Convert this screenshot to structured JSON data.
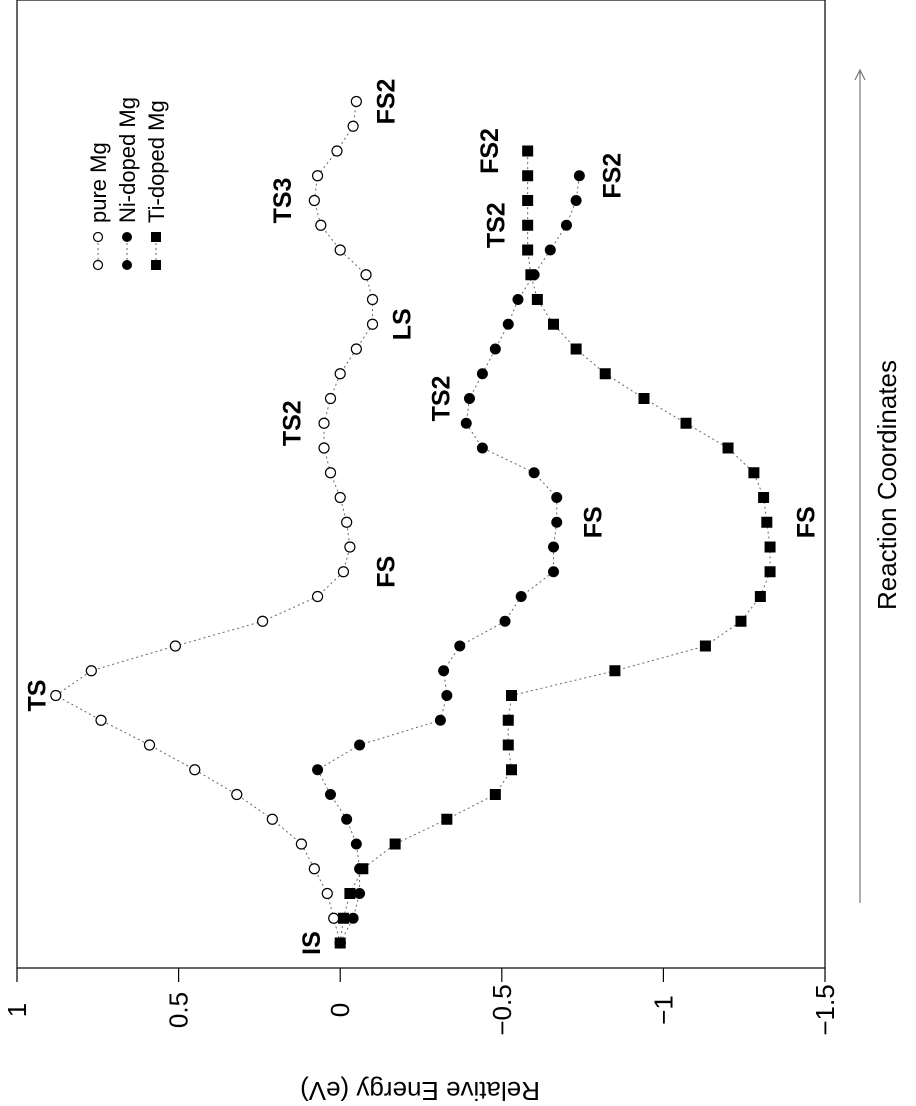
{
  "chart_data": {
    "type": "line",
    "orientation": "rotated-90",
    "xlabel": "Reaction Coordinates",
    "ylabel": "Relative Energy (eV)",
    "ylim": [
      -1.5,
      1.0
    ],
    "yticks": [
      1,
      0.5,
      0,
      -0.5,
      -1,
      -1.5
    ],
    "ytick_labels": [
      "1",
      "0.5",
      "0",
      "−0.5",
      "−1",
      "−1.5"
    ],
    "x_arrow": true,
    "series": [
      {
        "name": "pure Mg",
        "marker": "open-circle",
        "points": [
          [
            0,
            0.0
          ],
          [
            1,
            0.02
          ],
          [
            2,
            0.04
          ],
          [
            3,
            0.08
          ],
          [
            4,
            0.12
          ],
          [
            5,
            0.21
          ],
          [
            6,
            0.32
          ],
          [
            7,
            0.45
          ],
          [
            8,
            0.59
          ],
          [
            9,
            0.74
          ],
          [
            10,
            0.88
          ],
          [
            11,
            0.77
          ],
          [
            12,
            0.51
          ],
          [
            13,
            0.24
          ],
          [
            14,
            0.07
          ],
          [
            15,
            -0.01
          ],
          [
            16,
            -0.03
          ],
          [
            17,
            -0.02
          ],
          [
            18,
            0.0
          ],
          [
            19,
            0.03
          ],
          [
            20,
            0.05
          ],
          [
            21,
            0.05
          ],
          [
            22,
            0.03
          ],
          [
            23,
            0.0
          ],
          [
            24,
            -0.05
          ],
          [
            25,
            -0.1
          ],
          [
            26,
            -0.1
          ],
          [
            27,
            -0.08
          ],
          [
            28,
            0.0
          ],
          [
            29,
            0.06
          ],
          [
            30,
            0.08
          ],
          [
            31,
            0.07
          ],
          [
            32,
            0.01
          ],
          [
            33,
            -0.04
          ],
          [
            34,
            -0.05
          ]
        ]
      },
      {
        "name": "Ni-doped Mg",
        "marker": "filled-circle",
        "points": [
          [
            0,
            0.0
          ],
          [
            1,
            -0.04
          ],
          [
            2,
            -0.06
          ],
          [
            3,
            -0.06
          ],
          [
            4,
            -0.05
          ],
          [
            5,
            -0.02
          ],
          [
            6,
            0.03
          ],
          [
            7,
            0.07
          ],
          [
            8,
            -0.06
          ],
          [
            9,
            -0.31
          ],
          [
            10,
            -0.33
          ],
          [
            11,
            -0.32
          ],
          [
            12,
            -0.37
          ],
          [
            13,
            -0.51
          ],
          [
            14,
            -0.56
          ],
          [
            15,
            -0.66
          ],
          [
            16,
            -0.66
          ],
          [
            17,
            -0.67
          ],
          [
            18,
            -0.67
          ],
          [
            19,
            -0.6
          ],
          [
            20,
            -0.44
          ],
          [
            21,
            -0.39
          ],
          [
            22,
            -0.4
          ],
          [
            23,
            -0.44
          ],
          [
            24,
            -0.48
          ],
          [
            25,
            -0.52
          ],
          [
            26,
            -0.55
          ],
          [
            27,
            -0.6
          ],
          [
            28,
            -0.65
          ],
          [
            29,
            -0.7
          ],
          [
            30,
            -0.73
          ],
          [
            31,
            -0.74
          ]
        ]
      },
      {
        "name": "Ti-doped Mg",
        "marker": "filled-square",
        "points": [
          [
            0,
            0.0
          ],
          [
            1,
            -0.01
          ],
          [
            2,
            -0.03
          ],
          [
            3,
            -0.07
          ],
          [
            4,
            -0.17
          ],
          [
            5,
            -0.33
          ],
          [
            6,
            -0.48
          ],
          [
            7,
            -0.53
          ],
          [
            8,
            -0.52
          ],
          [
            9,
            -0.52
          ],
          [
            10,
            -0.53
          ],
          [
            11,
            -0.85
          ],
          [
            12,
            -1.13
          ],
          [
            13,
            -1.24
          ],
          [
            14,
            -1.3
          ],
          [
            15,
            -1.33
          ],
          [
            16,
            -1.33
          ],
          [
            17,
            -1.32
          ],
          [
            18,
            -1.31
          ],
          [
            19,
            -1.28
          ],
          [
            20,
            -1.2
          ],
          [
            21,
            -1.07
          ],
          [
            22,
            -0.94
          ],
          [
            23,
            -0.82
          ],
          [
            24,
            -0.73
          ],
          [
            25,
            -0.66
          ],
          [
            26,
            -0.61
          ],
          [
            27,
            -0.59
          ],
          [
            28,
            -0.58
          ],
          [
            29,
            -0.58
          ],
          [
            30,
            -0.58
          ],
          [
            31,
            -0.58
          ],
          [
            32,
            -0.58
          ]
        ]
      }
    ],
    "annotations": [
      {
        "text": "IS",
        "x": 0,
        "y": 0.09
      },
      {
        "text": "TS",
        "x": 10,
        "y": 0.94
      },
      {
        "text": "FS",
        "x": 15,
        "y": -0.14
      },
      {
        "text": "TS2",
        "x": 21,
        "y": 0.15
      },
      {
        "text": "LS",
        "x": 25,
        "y": -0.19
      },
      {
        "text": "TS3",
        "x": 30,
        "y": 0.18
      },
      {
        "text": "FS2",
        "x": 34,
        "y": -0.14
      },
      {
        "text": "FS",
        "x": 17,
        "y": -0.78
      },
      {
        "text": "TS2",
        "x": 22,
        "y": -0.31
      },
      {
        "text": "FS2",
        "x": 31,
        "y": -0.84
      },
      {
        "text": "FS",
        "x": 17,
        "y": -1.44
      },
      {
        "text": "TS2",
        "x": 29,
        "y": -0.48
      },
      {
        "text": "FS2",
        "x": 32,
        "y": -0.46
      }
    ]
  }
}
